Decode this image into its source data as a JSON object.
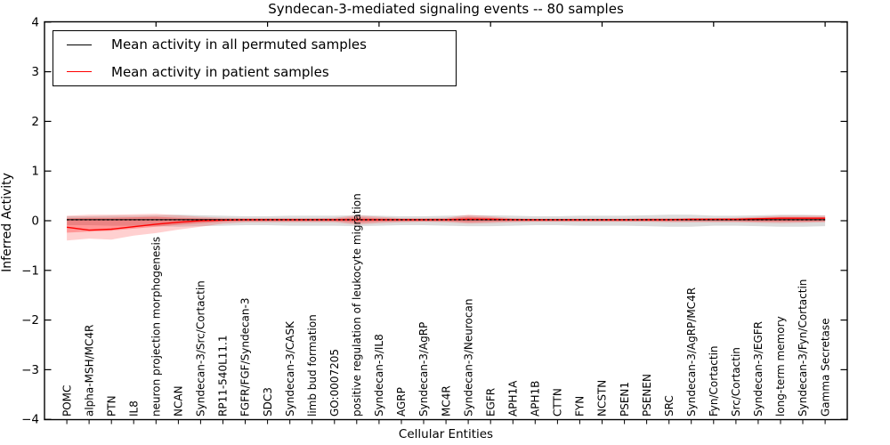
{
  "figure": {
    "title": "Syndecan-3-mediated signaling events -- 80 samples"
  },
  "chart_data": {
    "type": "line",
    "title": "Syndecan-3-mediated signaling events -- 80 samples",
    "xlabel": "Cellular Entities",
    "ylabel": "Inferred Activity",
    "ylim": [
      -4,
      4
    ],
    "yticks": [
      4,
      3,
      2,
      1,
      0,
      -1,
      -2,
      -3,
      -4
    ],
    "ytick_labels": [
      "4",
      "3",
      "2",
      "1",
      "0",
      "−1",
      "−2",
      "−3",
      "−4"
    ],
    "grid": false,
    "legend_position": "upper left",
    "legend": [
      {
        "label": "Mean activity in all permuted samples",
        "color": "#000000"
      },
      {
        "label": "Mean activity in patient samples",
        "color": "#ff0000"
      }
    ],
    "categories": [
      "POMC",
      "alpha-MSH/MC4R",
      "PTN",
      "IL8",
      "neuron projection morphogenesis",
      "NCAN",
      "Syndecan-3/Src/Cortactin",
      "RP11-540L11.1",
      "FGFR/FGF/Syndecan-3",
      "SDC3",
      "Syndecan-3/CASK",
      "limb bud formation",
      "GO:0007205",
      "positive regulation of leukocyte migration",
      "Syndecan-3/IL8",
      "AGRP",
      "Syndecan-3/AgRP",
      "MC4R",
      "Syndecan-3/Neurocan",
      "EGFR",
      "APH1A",
      "APH1B",
      "CTTN",
      "FYN",
      "NCSTN",
      "PSEN1",
      "PSENEN",
      "SRC",
      "Syndecan-3/AgRP/MC4R",
      "Fyn/Cortactin",
      "Src/Cortactin",
      "Syndecan-3/EGFR",
      "long-term memory",
      "Syndecan-3/Fyn/Cortactin",
      "Gamma Secretase"
    ],
    "series": [
      {
        "name": "Mean activity in all permuted samples",
        "color": "#000000",
        "values": [
          0.02,
          0.02,
          0.02,
          0.02,
          0.02,
          0.02,
          0.02,
          0.02,
          0.02,
          0.02,
          0.02,
          0.02,
          0.02,
          0.02,
          0.02,
          0.02,
          0.02,
          0.02,
          0.02,
          0.02,
          0.02,
          0.02,
          0.02,
          0.02,
          0.02,
          0.02,
          0.02,
          0.02,
          0.02,
          0.02,
          0.02,
          0.02,
          0.02,
          0.02,
          0.02
        ]
      },
      {
        "name": "Mean activity in patient samples",
        "color": "#ff0000",
        "values": [
          -0.13,
          -0.19,
          -0.17,
          -0.12,
          -0.07,
          -0.03,
          0.0,
          0.01,
          0.02,
          0.02,
          0.02,
          0.02,
          0.02,
          0.02,
          0.02,
          0.02,
          0.02,
          0.02,
          0.03,
          0.03,
          0.02,
          0.02,
          0.02,
          0.02,
          0.02,
          0.02,
          0.02,
          0.02,
          0.03,
          0.03,
          0.03,
          0.04,
          0.05,
          0.05,
          0.05
        ]
      }
    ],
    "bands": [
      {
        "name": "permuted-range",
        "color": "rgba(130,130,130,0.28)",
        "upper": [
          0.09,
          0.09,
          0.1,
          0.1,
          0.11,
          0.12,
          0.11,
          0.1,
          0.09,
          0.09,
          0.1,
          0.1,
          0.1,
          0.11,
          0.1,
          0.09,
          0.09,
          0.1,
          0.11,
          0.11,
          0.1,
          0.09,
          0.09,
          0.1,
          0.1,
          0.1,
          0.11,
          0.12,
          0.12,
          0.1,
          0.1,
          0.11,
          0.12,
          0.12,
          0.11
        ],
        "lower": [
          -0.09,
          -0.09,
          -0.1,
          -0.1,
          -0.11,
          -0.12,
          -0.11,
          -0.1,
          -0.09,
          -0.09,
          -0.1,
          -0.1,
          -0.1,
          -0.11,
          -0.1,
          -0.09,
          -0.09,
          -0.1,
          -0.11,
          -0.11,
          -0.1,
          -0.09,
          -0.09,
          -0.1,
          -0.1,
          -0.1,
          -0.11,
          -0.12,
          -0.12,
          -0.1,
          -0.1,
          -0.11,
          -0.12,
          -0.12,
          -0.11
        ]
      },
      {
        "name": "patient-range-outer",
        "color": "rgba(255,40,40,0.22)",
        "upper": [
          0.1,
          0.12,
          0.12,
          0.13,
          0.14,
          0.11,
          0.08,
          0.06,
          0.05,
          0.05,
          0.05,
          0.05,
          0.06,
          0.11,
          0.08,
          0.05,
          0.05,
          0.06,
          0.12,
          0.09,
          0.05,
          0.04,
          0.04,
          0.04,
          0.04,
          0.04,
          0.05,
          0.05,
          0.05,
          0.05,
          0.06,
          0.08,
          0.1,
          0.1,
          0.1
        ],
        "lower": [
          -0.4,
          -0.36,
          -0.38,
          -0.3,
          -0.25,
          -0.18,
          -0.12,
          -0.06,
          -0.03,
          -0.03,
          -0.03,
          -0.03,
          -0.03,
          -0.08,
          -0.05,
          -0.03,
          -0.02,
          -0.03,
          -0.06,
          -0.05,
          -0.03,
          -0.02,
          -0.02,
          -0.02,
          -0.02,
          -0.02,
          -0.02,
          -0.03,
          -0.03,
          -0.03,
          -0.03,
          -0.04,
          -0.05,
          -0.04,
          -0.03
        ]
      },
      {
        "name": "patient-range-inner",
        "color": "rgba(255,20,20,0.30)",
        "upper": [
          0.05,
          0.06,
          0.06,
          0.07,
          0.08,
          0.06,
          0.05,
          0.04,
          0.04,
          0.04,
          0.04,
          0.04,
          0.04,
          0.07,
          0.05,
          0.04,
          0.04,
          0.04,
          0.08,
          0.06,
          0.04,
          0.03,
          0.03,
          0.03,
          0.03,
          0.03,
          0.04,
          0.04,
          0.04,
          0.04,
          0.04,
          0.06,
          0.07,
          0.07,
          0.07
        ],
        "lower": [
          -0.24,
          -0.22,
          -0.2,
          -0.16,
          -0.12,
          -0.08,
          -0.05,
          -0.02,
          -0.01,
          -0.01,
          -0.01,
          -0.01,
          -0.01,
          -0.04,
          -0.02,
          -0.01,
          -0.01,
          -0.01,
          -0.03,
          -0.02,
          -0.01,
          -0.01,
          -0.01,
          -0.01,
          -0.01,
          -0.01,
          -0.01,
          -0.01,
          -0.01,
          -0.01,
          -0.01,
          -0.02,
          -0.02,
          -0.02,
          -0.01
        ]
      }
    ]
  }
}
